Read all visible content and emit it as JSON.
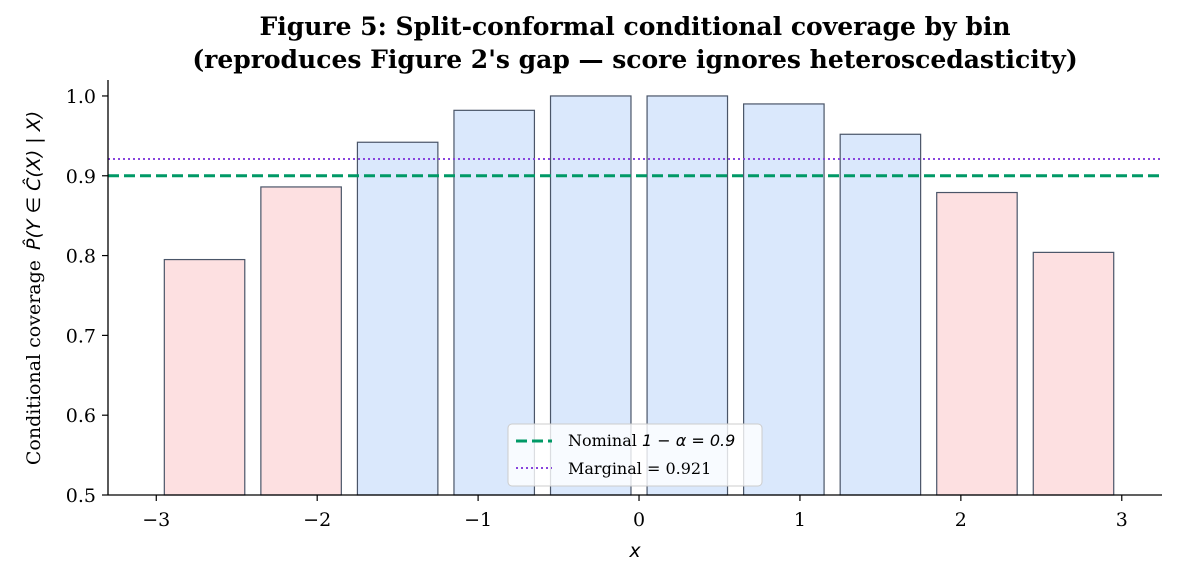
{
  "chart_data": {
    "type": "bar",
    "title_line1": "Figure 5: Split-conformal conditional coverage by bin",
    "title_line2": "(reproduces Figure 2's gap — score ignores heteroscedasticity)",
    "xlabel": "x",
    "ylabel_text": "Conditional coverage",
    "ylabel_math": "P̂(Y ∈ Ĉ(X) | X)",
    "xlim": [
      -3.3,
      3.25
    ],
    "ylim": [
      0.5,
      1.02
    ],
    "xticks": [
      -3,
      -2,
      -1,
      0,
      1,
      2,
      3
    ],
    "xtick_labels": [
      "−3",
      "−2",
      "−1",
      "0",
      "1",
      "2",
      "3"
    ],
    "yticks": [
      0.5,
      0.6,
      0.7,
      0.8,
      0.9,
      1.0
    ],
    "ytick_labels": [
      "0.5",
      "0.6",
      "0.7",
      "0.8",
      "0.9",
      "1.0"
    ],
    "bar_width": 0.5,
    "bars": [
      {
        "x": -2.7,
        "value": 0.795,
        "status": "below"
      },
      {
        "x": -2.1,
        "value": 0.886,
        "status": "below"
      },
      {
        "x": -1.5,
        "value": 0.942,
        "status": "above"
      },
      {
        "x": -0.9,
        "value": 0.982,
        "status": "above"
      },
      {
        "x": -0.3,
        "value": 1.0,
        "status": "above"
      },
      {
        "x": 0.3,
        "value": 1.0,
        "status": "above"
      },
      {
        "x": 0.9,
        "value": 0.99,
        "status": "above"
      },
      {
        "x": 1.5,
        "value": 0.952,
        "status": "above"
      },
      {
        "x": 2.1,
        "value": 0.879,
        "status": "below"
      },
      {
        "x": 2.7,
        "value": 0.804,
        "status": "below"
      }
    ],
    "nominal": {
      "value": 0.9,
      "label_prefix": "Nominal ",
      "label_math": "1 − α = 0.9",
      "color": "#009966"
    },
    "marginal": {
      "value": 0.921,
      "label": "Marginal = 0.921",
      "color": "#8844dd"
    },
    "colors": {
      "below_fill": "#fde0e1",
      "above_fill": "#dae8fc",
      "bar_edge": "#4a5568"
    },
    "legend_position": "lower center",
    "grid": false
  }
}
